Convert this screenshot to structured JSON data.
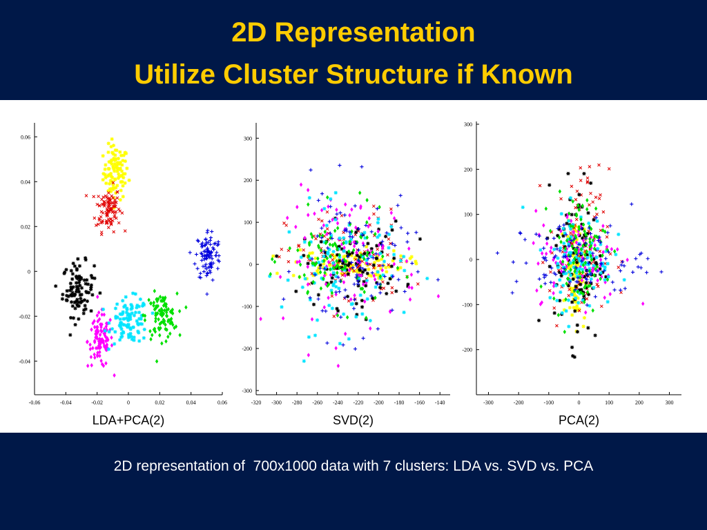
{
  "slide": {
    "title_line1": "2D Representation",
    "title_line2": "Utilize Cluster Structure if Known",
    "caption": "2D representation of  700x1000 data with 7 clusters: LDA vs. SVD vs. PCA"
  },
  "colors": {
    "background": "#001848",
    "title": "#ffcc00",
    "caption": "#ffffff",
    "cluster_colors": {
      "yellow": "#ffff00",
      "red": "#e00000",
      "black": "#000000",
      "magenta": "#ff00ff",
      "cyan": "#00e5ff",
      "green": "#00e000",
      "blue": "#0000dd"
    }
  },
  "chart_data": [
    {
      "type": "scatter",
      "xlabel": "LDA+PCA(2)",
      "xlim": [
        -0.06,
        0.06
      ],
      "ylim": [
        -0.055,
        0.065
      ],
      "xticks": [
        "-0.06",
        "-0.04",
        "-0.02",
        "0",
        "0.02",
        "0.04",
        "0.06"
      ],
      "yticks": [
        "-0.04",
        "-0.02",
        "0",
        "0.02",
        "0.04",
        "0.06"
      ],
      "clusters": [
        {
          "color": "yellow",
          "marker": "star",
          "cx": -0.008,
          "cy": 0.044,
          "sx": 0.004,
          "sy": 0.006
        },
        {
          "color": "red",
          "marker": "x",
          "cx": -0.013,
          "cy": 0.028,
          "sx": 0.004,
          "sy": 0.005
        },
        {
          "color": "black",
          "marker": "star",
          "cx": -0.032,
          "cy": -0.008,
          "sx": 0.005,
          "sy": 0.006
        },
        {
          "color": "magenta",
          "marker": "diamond",
          "cx": -0.018,
          "cy": -0.031,
          "sx": 0.004,
          "sy": 0.006
        },
        {
          "color": "cyan",
          "marker": "star",
          "cx": 0.001,
          "cy": -0.022,
          "sx": 0.006,
          "sy": 0.005
        },
        {
          "color": "green",
          "marker": "diamond",
          "cx": 0.021,
          "cy": -0.02,
          "sx": 0.005,
          "sy": 0.005
        },
        {
          "color": "blue",
          "marker": "plus",
          "cx": 0.051,
          "cy": 0.007,
          "sx": 0.004,
          "sy": 0.006
        }
      ]
    },
    {
      "type": "scatter",
      "xlabel": "SVD(2)",
      "xlim": [
        -320,
        -130
      ],
      "ylim": [
        -310,
        330
      ],
      "xticks": [
        "-320",
        "-300",
        "-280",
        "-260",
        "-240",
        "-220",
        "-200",
        "-180",
        "-160",
        "-140"
      ],
      "yticks": [
        "-300",
        "-200",
        "-100",
        "0",
        "100",
        "200",
        "300"
      ],
      "clusters": [
        {
          "color": "yellow",
          "marker": "star",
          "cx": -230,
          "cy": 0,
          "sx": 28,
          "sy": 18
        },
        {
          "color": "red",
          "marker": "x",
          "cx": -230,
          "cy": 10,
          "sx": 30,
          "sy": 60
        },
        {
          "color": "black",
          "marker": "star",
          "cx": -225,
          "cy": 0,
          "sx": 25,
          "sy": 50
        },
        {
          "color": "magenta",
          "marker": "diamond",
          "cx": -225,
          "cy": 10,
          "sx": 32,
          "sy": 80
        },
        {
          "color": "cyan",
          "marker": "star",
          "cx": -235,
          "cy": -10,
          "sx": 30,
          "sy": 75
        },
        {
          "color": "green",
          "marker": "diamond",
          "cx": -240,
          "cy": 10,
          "sx": 25,
          "sy": 55
        },
        {
          "color": "blue",
          "marker": "plus",
          "cx": -225,
          "cy": 0,
          "sx": 28,
          "sy": 90
        }
      ]
    },
    {
      "type": "scatter",
      "xlabel": "PCA(2)",
      "xlim": [
        -340,
        340
      ],
      "ylim": [
        -300,
        300
      ],
      "xticks": [
        "-300",
        "-200",
        "-100",
        "0",
        "100",
        "200",
        "300"
      ],
      "yticks": [
        "-200",
        "-100",
        "0",
        "100",
        "200",
        "300"
      ],
      "clusters": [
        {
          "color": "yellow",
          "marker": "star",
          "cx": -10,
          "cy": -20,
          "sx": 15,
          "sy": 60
        },
        {
          "color": "red",
          "marker": "x",
          "cx": 0,
          "cy": 20,
          "sx": 50,
          "sy": 90
        },
        {
          "color": "black",
          "marker": "star",
          "cx": 0,
          "cy": 0,
          "sx": 40,
          "sy": 90
        },
        {
          "color": "magenta",
          "marker": "diamond",
          "cx": 0,
          "cy": 10,
          "sx": 75,
          "sy": 50
        },
        {
          "color": "cyan",
          "marker": "star",
          "cx": 0,
          "cy": 0,
          "sx": 55,
          "sy": 55
        },
        {
          "color": "green",
          "marker": "diamond",
          "cx": 0,
          "cy": 20,
          "sx": 45,
          "sy": 60
        },
        {
          "color": "blue",
          "marker": "plus",
          "cx": 0,
          "cy": 0,
          "sx": 110,
          "sy": 45
        }
      ]
    }
  ]
}
